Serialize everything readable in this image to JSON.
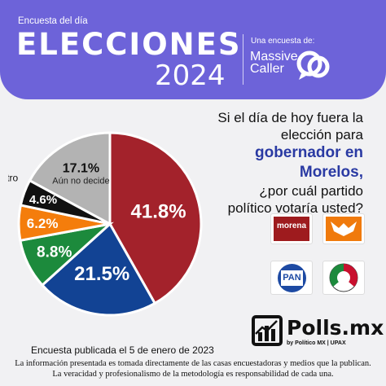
{
  "header": {
    "kicker": "Encuesta del día",
    "title": "ELECCIONES",
    "year": "2024",
    "by_label": "Una encuesta de:",
    "brand_line1": "Massive",
    "brand_line2": "Caller"
  },
  "question": {
    "line1": "Si el día de hoy fuera la",
    "line2": "elección para",
    "highlight1": "gobernador en",
    "highlight2": "Morelos,",
    "line3": "¿por cuál partido",
    "line4": "político votaría usted?"
  },
  "chart_data": {
    "type": "pie",
    "start": "12 o'clock, clockwise",
    "slices": [
      {
        "label": "",
        "party": "morena",
        "value": 41.8,
        "text": "41.8%",
        "color": "#a3222b"
      },
      {
        "label": "",
        "party": "PAN",
        "value": 21.5,
        "text": "21.5%",
        "color": "#124394"
      },
      {
        "label": "",
        "party": "PRI",
        "value": 8.8,
        "text": "8.8%",
        "color": "#1c8a3c"
      },
      {
        "label": "",
        "party": "Movimiento Ciudadano",
        "value": 6.2,
        "text": "6.2%",
        "color": "#f47d0c"
      },
      {
        "label": "Otro",
        "value": 4.6,
        "text": "4.6%",
        "color": "#111111"
      },
      {
        "label": "Aún no decide",
        "value": 17.1,
        "text": "17.1%",
        "color": "#b3b3b3"
      }
    ]
  },
  "parties": {
    "morena_label": "morena",
    "pan_label": "PAN"
  },
  "colors": {
    "header": "#6d63d9",
    "highlight": "#2a3aa3"
  },
  "footer": {
    "brand": "Polls.mx",
    "brand_sub": "by Político MX  |  UPAX",
    "published": "Encuesta publicada el 5 de enero de 2023",
    "disclaimer1": "La información presentada es tomada directamente de las casas encuestadoras y medios que la publican.",
    "disclaimer2": "La veracidad y profesionalismo de la metodología es responsabilidad de cada una."
  }
}
